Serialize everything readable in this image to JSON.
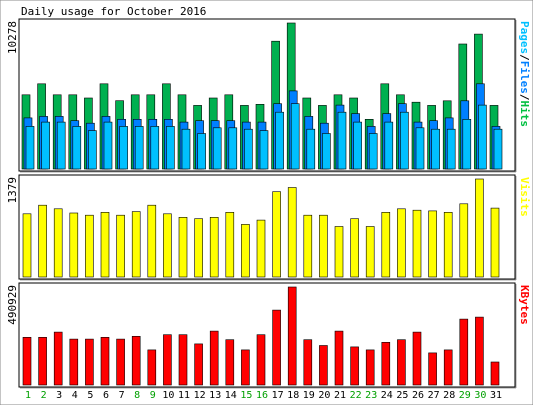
{
  "chart_data": {
    "type": "bar",
    "title": "Daily usage for October 2016",
    "categories": [
      "1",
      "2",
      "3",
      "4",
      "5",
      "6",
      "7",
      "8",
      "9",
      "10",
      "11",
      "12",
      "13",
      "14",
      "15",
      "16",
      "17",
      "18",
      "19",
      "20",
      "21",
      "22",
      "23",
      "24",
      "25",
      "26",
      "27",
      "28",
      "29",
      "30",
      "31"
    ],
    "weekend_days": [
      "1",
      "2",
      "8",
      "9",
      "15",
      "16",
      "22",
      "23",
      "29",
      "30"
    ],
    "panels": [
      {
        "id": "hits",
        "ymax_label": "10278",
        "ylim": [
          0,
          10278
        ],
        "legend": [
          {
            "text": "Pages",
            "color": "#00c0ff"
          },
          {
            "text": "/",
            "color": "#000000"
          },
          {
            "text": "Files",
            "color": "#0080ff"
          },
          {
            "text": "/",
            "color": "#000000"
          },
          {
            "text": "Hits",
            "color": "#00c040"
          }
        ],
        "series": [
          {
            "name": "Hits",
            "color": "#00b050",
            "values": [
              5222,
              6000,
              5222,
              5222,
              5000,
              6000,
              4806,
              5222,
              5222,
              6000,
              5222,
              4476,
              5000,
              5222,
              4476,
              4558,
              9000,
              10278,
              5000,
              4476,
              5222,
              5000,
              3500,
              6000,
              5222,
              4700,
              4476,
              4800,
              8800,
              9500,
              4476
            ]
          },
          {
            "name": "Files",
            "color": "#0080ff",
            "values": [
              3600,
              3700,
              3700,
              3400,
              3222,
              3700,
              3500,
              3500,
              3500,
              3500,
              3300,
              3400,
              3400,
              3400,
              3300,
              3300,
              4600,
              5500,
              3700,
              3222,
              4500,
              3900,
              3000,
              3900,
              4600,
              3300,
              3400,
              3600,
              4800,
              6000,
              3000
            ]
          },
          {
            "name": "Pages",
            "color": "#00c0ff",
            "values": [
              3000,
              3300,
              3300,
              3000,
              2700,
              3300,
              3000,
              3000,
              3000,
              3000,
              2800,
              2500,
              2900,
              2900,
              2800,
              2700,
              4000,
              4600,
              2800,
              2500,
              4000,
              3300,
              2500,
              3300,
              4000,
              2900,
              2800,
              2800,
              3500,
              4500,
              2800
            ]
          }
        ]
      },
      {
        "id": "visits",
        "ymax_label": "1379",
        "ylim": [
          0,
          1379
        ],
        "legend": [
          {
            "text": "Visits",
            "color": "#ffff00"
          }
        ],
        "series": [
          {
            "name": "Visits",
            "color": "#ffff00",
            "values": [
              890,
              1010,
              960,
              900,
              870,
              910,
              870,
              920,
              1010,
              890,
              840,
              820,
              840,
              910,
              740,
              800,
              1200,
              1260,
              870,
              870,
              710,
              820,
              710,
              910,
              960,
              940,
              930,
              910,
              1030,
              1379,
              970
            ]
          }
        ]
      },
      {
        "id": "kbytes",
        "ymax_label": "490929",
        "ylim": [
          0,
          490929
        ],
        "legend": [
          {
            "text": "KBytes",
            "color": "#ff0000"
          }
        ],
        "series": [
          {
            "name": "KBytes",
            "color": "#ff0000",
            "values": [
              239000,
              239000,
              265000,
              230000,
              230000,
              239000,
              230000,
              244000,
              176000,
              252000,
              252000,
              206000,
              270000,
              227000,
              176000,
              252000,
              375000,
              490929,
              227000,
              198000,
              270000,
              191000,
              176000,
              214000,
              227000,
              265000,
              161000,
              176000,
              330000,
              340000,
              115000
            ]
          }
        ]
      }
    ]
  }
}
